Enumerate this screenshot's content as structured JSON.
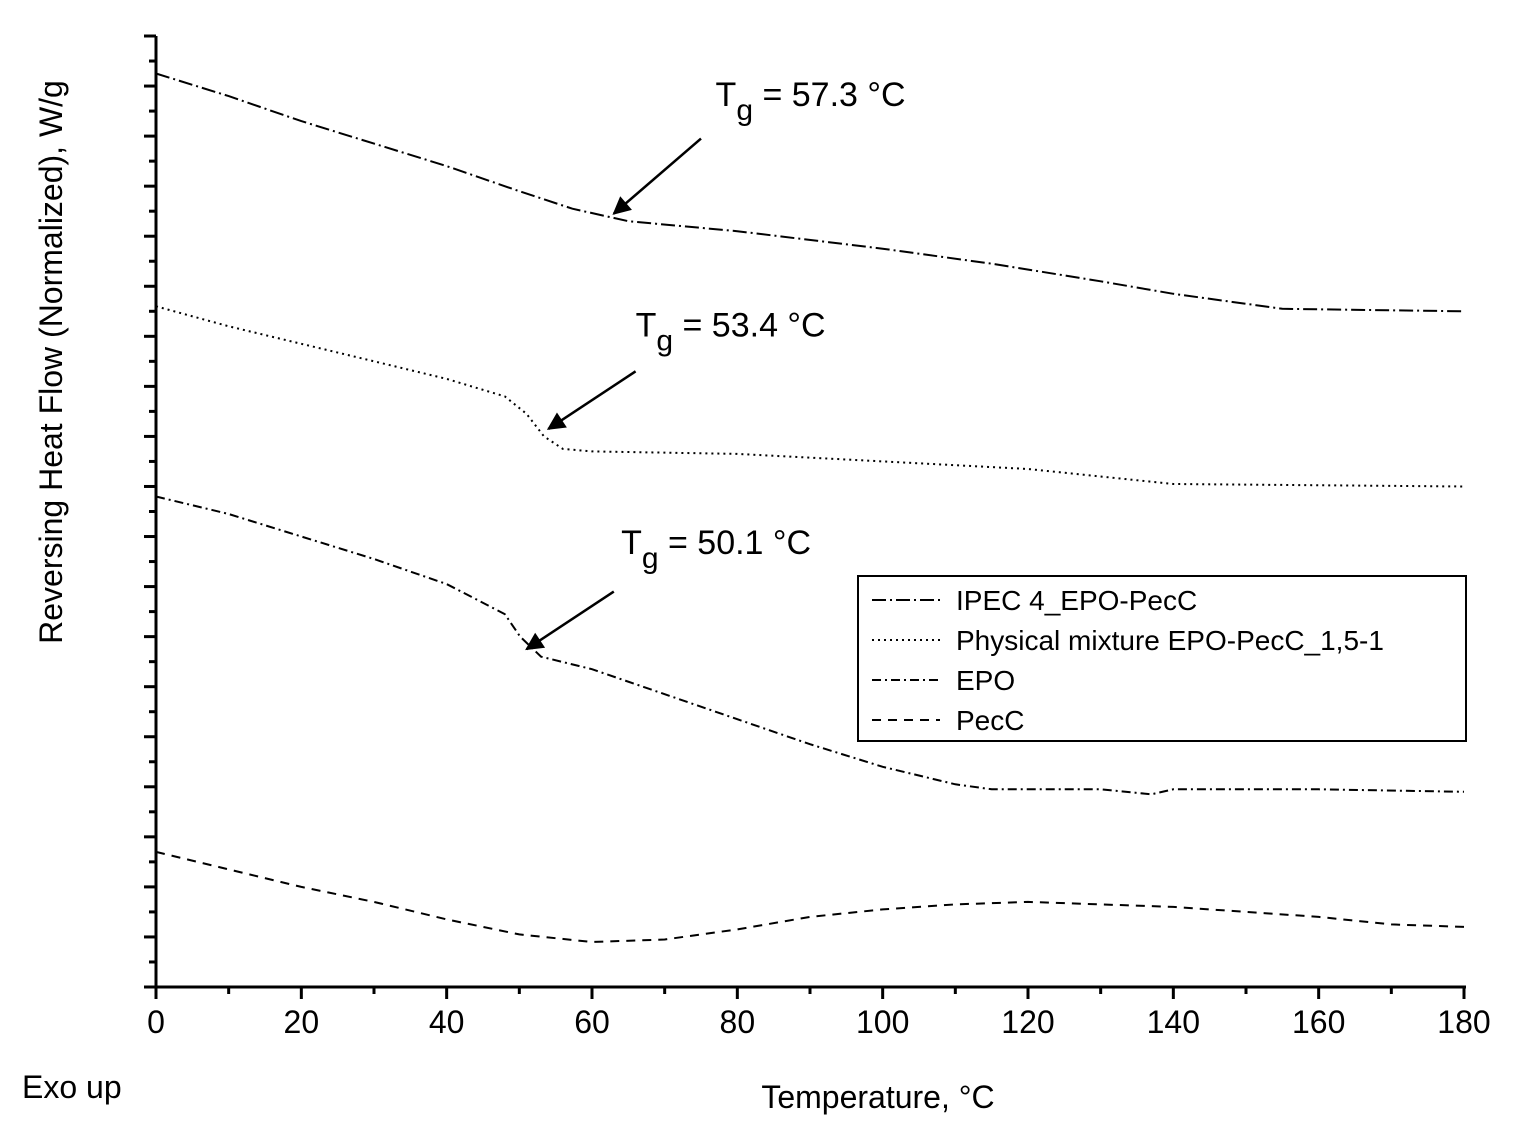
{
  "chart_data": {
    "type": "line",
    "title": "",
    "xlabel": "Temperature, °C",
    "ylabel": "Reversing Heat Flow (Normalized), W/g",
    "corner_note": "Exo up",
    "xlim": [
      0,
      180
    ],
    "ylim": [
      0,
      19
    ],
    "x_ticks": [
      0,
      20,
      40,
      60,
      80,
      100,
      120,
      140,
      160,
      180
    ],
    "y_tick_labels_shown": false,
    "grid": false,
    "legend_position": "center-right",
    "series": [
      {
        "name": "IPEC 4_EPO-PecC",
        "dash": "long-dash-dot",
        "x": [
          0,
          10,
          20,
          30,
          40,
          50,
          57.3,
          65,
          80,
          100,
          115,
          130,
          140,
          155,
          180
        ],
        "y": [
          18.25,
          17.8,
          17.3,
          16.85,
          16.4,
          15.9,
          15.55,
          15.3,
          15.1,
          14.75,
          14.45,
          14.1,
          13.85,
          13.55,
          13.5
        ]
      },
      {
        "name": "Physical mixture EPO-PecC_1,5-1",
        "dash": "dotted",
        "x": [
          0,
          10,
          20,
          30,
          40,
          48,
          51,
          53.4,
          56,
          60,
          80,
          100,
          120,
          140,
          180
        ],
        "y": [
          13.6,
          13.2,
          12.85,
          12.5,
          12.15,
          11.8,
          11.45,
          11.0,
          10.75,
          10.7,
          10.65,
          10.5,
          10.35,
          10.05,
          10.0
        ]
      },
      {
        "name": "EPO",
        "dash": "dash-dot",
        "x": [
          0,
          10,
          20,
          30,
          40,
          48,
          50.1,
          53,
          60,
          70,
          80,
          90,
          100,
          110,
          115,
          130,
          137,
          140,
          160,
          180
        ],
        "y": [
          9.8,
          9.45,
          9.0,
          8.55,
          8.05,
          7.45,
          7.0,
          6.6,
          6.35,
          5.85,
          5.35,
          4.85,
          4.4,
          4.05,
          3.95,
          3.95,
          3.85,
          3.95,
          3.95,
          3.9
        ]
      },
      {
        "name": "PecC",
        "dash": "dashed",
        "x": [
          0,
          10,
          20,
          30,
          40,
          50,
          60,
          70,
          80,
          90,
          100,
          110,
          120,
          130,
          140,
          150,
          160,
          170,
          180
        ],
        "y": [
          2.7,
          2.35,
          2.0,
          1.7,
          1.35,
          1.05,
          0.9,
          0.95,
          1.15,
          1.4,
          1.55,
          1.65,
          1.7,
          1.65,
          1.6,
          1.5,
          1.4,
          1.25,
          1.2
        ]
      }
    ],
    "annotations": [
      {
        "base": "T",
        "sub": "g",
        "rest": " = 57.3 °C",
        "target": [
          63,
          15.45
        ],
        "arrow_from": [
          75,
          16.95
        ],
        "text_at": [
          77,
          17.6
        ]
      },
      {
        "base": "T",
        "sub": "g",
        "rest": " = 53.4 °C",
        "target": [
          54,
          11.15
        ],
        "arrow_from": [
          66,
          12.3
        ],
        "text_at": [
          66,
          13.0
        ]
      },
      {
        "base": "T",
        "sub": "g",
        "rest": " = 50.1 °C",
        "target": [
          51,
          6.75
        ],
        "arrow_from": [
          63,
          7.9
        ],
        "text_at": [
          64,
          8.65
        ]
      }
    ]
  }
}
